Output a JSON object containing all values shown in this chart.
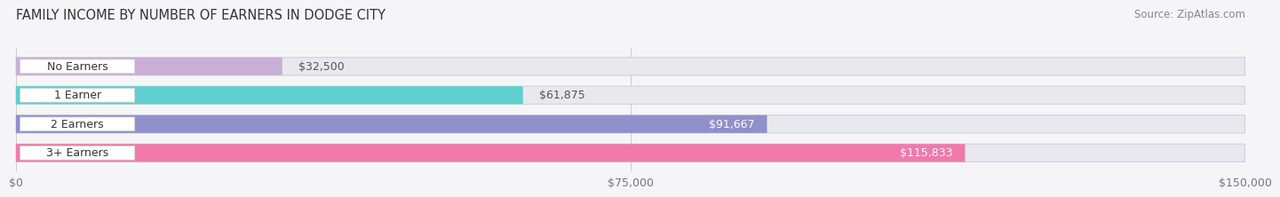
{
  "title": "FAMILY INCOME BY NUMBER OF EARNERS IN DODGE CITY",
  "source": "Source: ZipAtlas.com",
  "categories": [
    "No Earners",
    "1 Earner",
    "2 Earners",
    "3+ Earners"
  ],
  "values": [
    32500,
    61875,
    91667,
    115833
  ],
  "bar_colors": [
    "#c9afd6",
    "#5ecfcc",
    "#9090cc",
    "#f07aaa"
  ],
  "bar_bg_color": "#e8e8ee",
  "value_label_colors": [
    "#555555",
    "#555555",
    "#ffffff",
    "#ffffff"
  ],
  "xlim": [
    0,
    150000
  ],
  "xticks": [
    0,
    75000,
    150000
  ],
  "xtick_labels": [
    "$0",
    "$75,000",
    "$150,000"
  ],
  "value_labels": [
    "$32,500",
    "$61,875",
    "$91,667",
    "$115,833"
  ],
  "background_color": "#f5f5f8",
  "title_fontsize": 10.5,
  "source_fontsize": 8.5,
  "tick_fontsize": 9,
  "bar_label_fontsize": 9,
  "value_label_fontsize": 9,
  "bar_height": 0.62,
  "n_bars": 4
}
